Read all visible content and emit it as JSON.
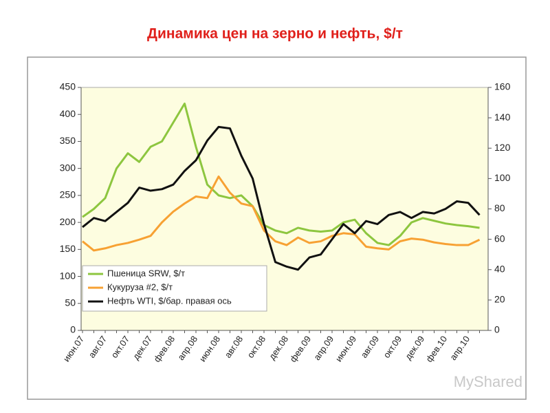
{
  "chart_data": {
    "type": "line",
    "title": "Динамика цен на зерно и нефть, $/т",
    "watermark": "MyShared",
    "categories": [
      "июн.07",
      null,
      "авг.07",
      null,
      "окт.07",
      null,
      "дек.07",
      null,
      "фев.08",
      null,
      "апр.08",
      null,
      "июн.08",
      null,
      "авг.08",
      null,
      "окт.08",
      null,
      "дек.08",
      null,
      "фев.09",
      null,
      "апр.09",
      null,
      "июн.09",
      null,
      "авг.09",
      null,
      "окт.09",
      null,
      "дек.09",
      null,
      "фев.10",
      null,
      "апр.10",
      null
    ],
    "series": [
      {
        "name": "Пшеница SRW, $/т",
        "color": "#8dc63f",
        "values": [
          210,
          225,
          245,
          300,
          328,
          312,
          340,
          350,
          385,
          420,
          340,
          270,
          250,
          245,
          250,
          230,
          195,
          185,
          180,
          190,
          185,
          183,
          185,
          200,
          205,
          180,
          162,
          158,
          175,
          200,
          208,
          203,
          198,
          195,
          193,
          190
        ]
      },
      {
        "name": "Кукуруза #2, $/т",
        "color": "#f7a133",
        "values": [
          165,
          148,
          152,
          158,
          162,
          168,
          175,
          200,
          220,
          235,
          248,
          245,
          285,
          255,
          235,
          230,
          185,
          165,
          158,
          172,
          162,
          165,
          175,
          180,
          178,
          155,
          152,
          150,
          165,
          170,
          168,
          163,
          160,
          158,
          158,
          168
        ]
      },
      {
        "name": "Нефть WTI, $/бар. правая ось",
        "color": "#111111",
        "axis": "y2",
        "values": [
          68,
          74,
          72,
          78,
          84,
          94,
          92,
          93,
          96,
          105,
          112,
          125,
          134,
          133,
          115,
          100,
          70,
          45,
          42,
          40,
          48,
          50,
          60,
          70,
          64,
          72,
          70,
          76,
          78,
          74,
          78,
          77,
          80,
          85,
          84,
          76
        ]
      }
    ],
    "ylim": [
      0,
      450
    ],
    "yticks": [
      0,
      50,
      100,
      150,
      200,
      250,
      300,
      350,
      400,
      450
    ],
    "y2lim": [
      0,
      160
    ],
    "y2ticks": [
      0,
      20,
      40,
      60,
      80,
      100,
      120,
      140,
      160
    ],
    "legend": "lower left",
    "grid": false,
    "background": "#fdfde0"
  }
}
